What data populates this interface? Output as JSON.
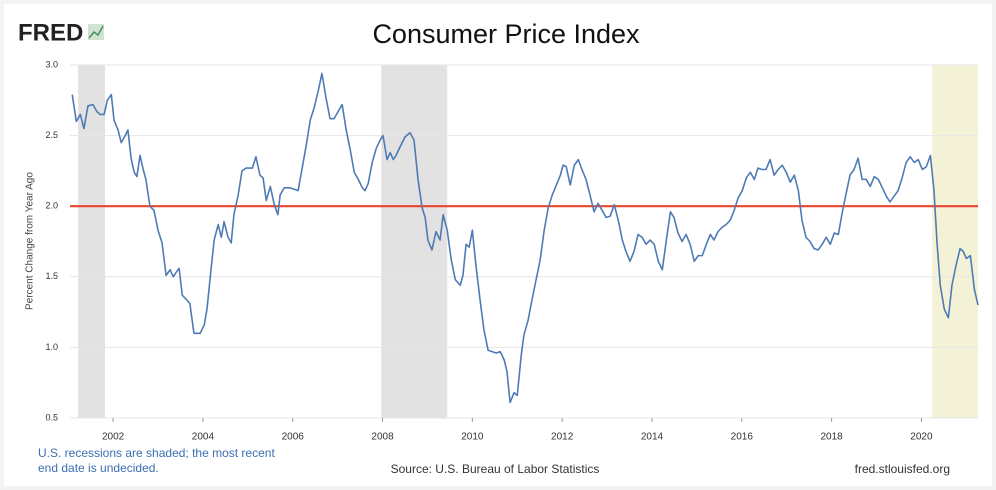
{
  "chart_data": {
    "type": "line",
    "logo": "FRED",
    "title": "Consumer Price Index",
    "ylabel": "Percent Change from Year Ago",
    "footnote": "U.S. recessions are shaded; the most recent end date is undecided.",
    "source": "Source: U.S. Bureau of Labor Statistics",
    "site": "fred.stlouisfed.org",
    "xlim": [
      2001.04,
      2021.26
    ],
    "xticks": [
      2002,
      2004,
      2006,
      2008,
      2010,
      2012,
      2014,
      2016,
      2018,
      2020
    ],
    "ylim": [
      0.5,
      3.0
    ],
    "yticks": [
      {
        "value": 0.5,
        "label": "0.5"
      },
      {
        "value": 1.0,
        "label": "1.0"
      },
      {
        "value": 1.5,
        "label": "1.5"
      },
      {
        "value": 2.0,
        "label": "2.0"
      },
      {
        "value": 2.5,
        "label": "2.5"
      },
      {
        "value": 3.0,
        "label": "3.0"
      }
    ],
    "grid": true,
    "recession_color": "#e2e2e2",
    "undecided_color": "#f4f2d6",
    "recessions": [
      {
        "start": 2001.22,
        "end": 2001.82,
        "undecided": false
      },
      {
        "start": 2007.97,
        "end": 2009.44,
        "undecided": false
      },
      {
        "start": 2020.24,
        "end": 2021.26,
        "undecided": true
      }
    ],
    "reference_line": {
      "value": 2.0,
      "color": "#e8452f"
    },
    "x": [
      2001.09,
      2001.18,
      2001.27,
      2001.35,
      2001.44,
      2001.55,
      2001.64,
      2001.71,
      2001.8,
      2001.87,
      2001.96,
      2002.02,
      2002.11,
      2002.18,
      2002.27,
      2002.33,
      2002.4,
      2002.47,
      2002.53,
      2002.6,
      2002.67,
      2002.73,
      2002.82,
      2002.91,
      2003.0,
      2003.09,
      2003.18,
      2003.27,
      2003.34,
      2003.4,
      2003.47,
      2003.54,
      2003.63,
      2003.71,
      2003.8,
      2003.94,
      2004.03,
      2004.09,
      2004.18,
      2004.25,
      2004.34,
      2004.41,
      2004.47,
      2004.56,
      2004.63,
      2004.69,
      2004.78,
      2004.87,
      2004.96,
      2005.1,
      2005.18,
      2005.27,
      2005.34,
      2005.41,
      2005.5,
      2005.59,
      2005.67,
      2005.72,
      2005.81,
      2005.94,
      2006.12,
      2006.21,
      2006.3,
      2006.39,
      2006.48,
      2006.57,
      2006.65,
      2006.74,
      2006.83,
      2006.92,
      2007.01,
      2007.1,
      2007.19,
      2007.28,
      2007.37,
      2007.46,
      2007.55,
      2007.61,
      2007.68,
      2007.77,
      2007.86,
      2007.95,
      2008.01,
      2008.1,
      2008.17,
      2008.24,
      2008.3,
      2008.39,
      2008.5,
      2008.61,
      2008.7,
      2008.79,
      2008.88,
      2008.95,
      2009.01,
      2009.1,
      2009.19,
      2009.28,
      2009.35,
      2009.44,
      2009.53,
      2009.62,
      2009.73,
      2009.79,
      2009.86,
      2009.93,
      2010.0,
      2010.08,
      2010.17,
      2010.26,
      2010.35,
      2010.44,
      2010.53,
      2010.62,
      2010.71,
      2010.77,
      2010.84,
      2010.93,
      2011.0,
      2011.09,
      2011.15,
      2011.24,
      2011.33,
      2011.42,
      2011.51,
      2011.6,
      2011.69,
      2011.78,
      2011.87,
      2011.96,
      2012.02,
      2012.09,
      2012.18,
      2012.27,
      2012.36,
      2012.44,
      2012.53,
      2012.62,
      2012.71,
      2012.8,
      2012.89,
      2012.98,
      2013.07,
      2013.16,
      2013.25,
      2013.34,
      2013.42,
      2013.51,
      2013.6,
      2013.69,
      2013.78,
      2013.87,
      2013.96,
      2014.05,
      2014.14,
      2014.23,
      2014.32,
      2014.41,
      2014.49,
      2014.58,
      2014.67,
      2014.76,
      2014.85,
      2014.94,
      2015.03,
      2015.12,
      2015.21,
      2015.3,
      2015.38,
      2015.47,
      2015.56,
      2015.65,
      2015.74,
      2015.83,
      2015.92,
      2016.01,
      2016.1,
      2016.19,
      2016.28,
      2016.36,
      2016.45,
      2016.54,
      2016.63,
      2016.72,
      2016.81,
      2016.9,
      2016.99,
      2017.08,
      2017.17,
      2017.26,
      2017.34,
      2017.43,
      2017.52,
      2017.61,
      2017.7,
      2017.79,
      2017.88,
      2017.97,
      2018.06,
      2018.15,
      2018.24,
      2018.33,
      2018.41,
      2018.5,
      2018.59,
      2018.68,
      2018.77,
      2018.86,
      2018.95,
      2019.04,
      2019.13,
      2019.22,
      2019.3,
      2019.39,
      2019.48,
      2019.57,
      2019.66,
      2019.75,
      2019.84,
      2019.93,
      2020.02,
      2020.11,
      2020.2,
      2020.28,
      2020.35,
      2020.42,
      2020.51,
      2020.6,
      2020.68,
      2020.77,
      2020.86,
      2020.93,
      2021.0,
      2021.09,
      2021.18,
      2021.26
    ],
    "series": [
      {
        "color": "#4f7bb5",
        "values": [
          2.79,
          2.6,
          2.65,
          2.55,
          2.71,
          2.72,
          2.67,
          2.65,
          2.65,
          2.75,
          2.79,
          2.61,
          2.54,
          2.45,
          2.5,
          2.54,
          2.34,
          2.24,
          2.21,
          2.36,
          2.26,
          2.19,
          2.0,
          1.97,
          1.83,
          1.74,
          1.51,
          1.55,
          1.5,
          1.53,
          1.56,
          1.37,
          1.34,
          1.31,
          1.1,
          1.1,
          1.16,
          1.27,
          1.55,
          1.76,
          1.87,
          1.78,
          1.89,
          1.78,
          1.74,
          1.94,
          2.07,
          2.25,
          2.27,
          2.27,
          2.35,
          2.22,
          2.2,
          2.04,
          2.14,
          2.01,
          1.94,
          2.08,
          2.13,
          2.13,
          2.11,
          2.27,
          2.43,
          2.61,
          2.7,
          2.82,
          2.94,
          2.77,
          2.62,
          2.62,
          2.67,
          2.72,
          2.54,
          2.4,
          2.24,
          2.19,
          2.13,
          2.11,
          2.16,
          2.31,
          2.41,
          2.47,
          2.5,
          2.33,
          2.38,
          2.33,
          2.36,
          2.42,
          2.49,
          2.52,
          2.47,
          2.19,
          1.99,
          1.92,
          1.76,
          1.69,
          1.82,
          1.76,
          1.94,
          1.83,
          1.62,
          1.48,
          1.44,
          1.51,
          1.73,
          1.71,
          1.83,
          1.58,
          1.34,
          1.12,
          0.98,
          0.97,
          0.96,
          0.97,
          0.91,
          0.83,
          0.61,
          0.68,
          0.66,
          0.95,
          1.09,
          1.19,
          1.34,
          1.48,
          1.62,
          1.83,
          1.99,
          2.08,
          2.15,
          2.22,
          2.29,
          2.28,
          2.15,
          2.29,
          2.33,
          2.26,
          2.19,
          2.08,
          1.96,
          2.02,
          1.97,
          1.92,
          1.93,
          2.01,
          1.9,
          1.76,
          1.68,
          1.61,
          1.68,
          1.8,
          1.78,
          1.73,
          1.76,
          1.73,
          1.61,
          1.55,
          1.76,
          1.96,
          1.92,
          1.81,
          1.75,
          1.8,
          1.73,
          1.61,
          1.65,
          1.65,
          1.73,
          1.8,
          1.76,
          1.82,
          1.85,
          1.87,
          1.9,
          1.97,
          2.06,
          2.11,
          2.2,
          2.24,
          2.19,
          2.27,
          2.26,
          2.26,
          2.33,
          2.22,
          2.26,
          2.29,
          2.24,
          2.17,
          2.22,
          2.11,
          1.9,
          1.78,
          1.75,
          1.7,
          1.69,
          1.73,
          1.78,
          1.73,
          1.81,
          1.8,
          1.96,
          2.1,
          2.22,
          2.26,
          2.34,
          2.19,
          2.19,
          2.14,
          2.21,
          2.19,
          2.13,
          2.07,
          2.03,
          2.07,
          2.11,
          2.2,
          2.31,
          2.35,
          2.31,
          2.33,
          2.26,
          2.28,
          2.36,
          2.11,
          1.73,
          1.44,
          1.27,
          1.21,
          1.44,
          1.58,
          1.7,
          1.68,
          1.63,
          1.65,
          1.41,
          1.3
        ]
      }
    ]
  }
}
